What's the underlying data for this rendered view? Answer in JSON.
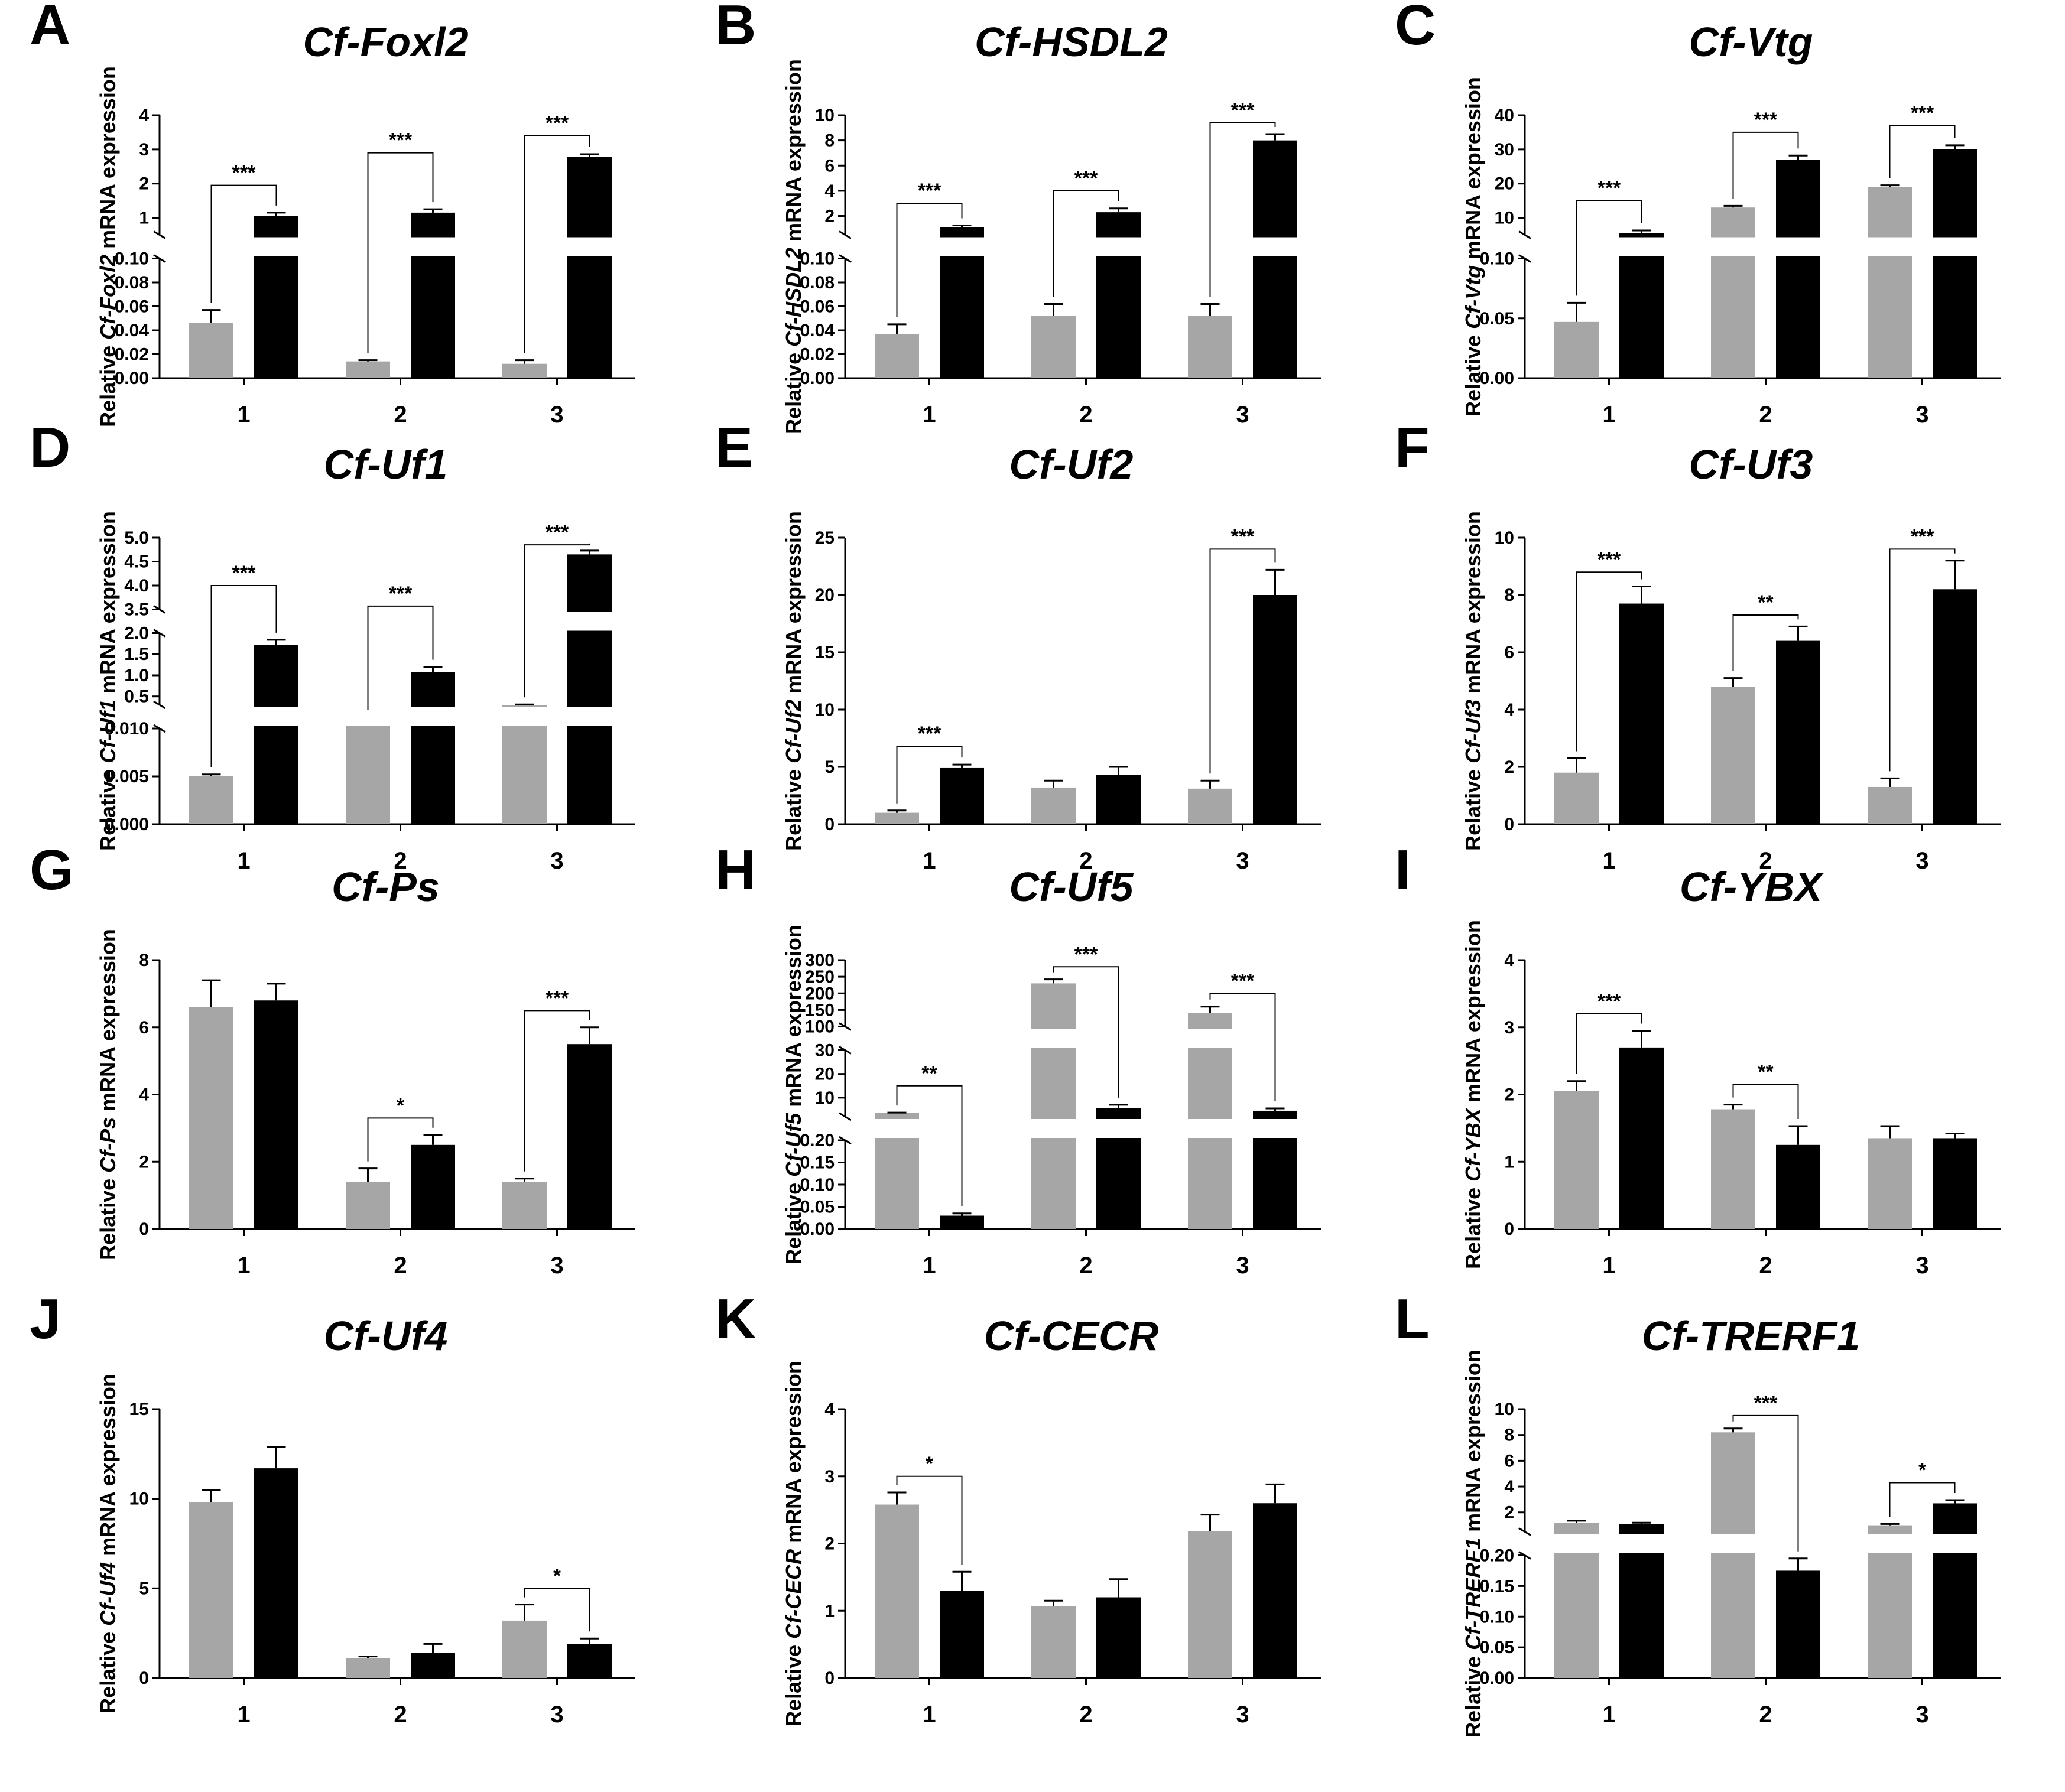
{
  "figure": {
    "ylabel_prefix": "Relative ",
    "ylabel_suffix": " mRNA expression",
    "series_colors": {
      "grey": "#a6a6a6",
      "black": "#000000"
    }
  },
  "chart_data": [
    {
      "type": "bar",
      "letter": "A",
      "title": "Cf-Foxl2",
      "gene": "Cf-Foxl2",
      "categories": [
        "1",
        "2",
        "3"
      ],
      "segments": [
        {
          "lo": 0,
          "hi": 0.1,
          "ticks": [
            0.0,
            0.02,
            0.04,
            0.06,
            0.08,
            0.1
          ],
          "labels": [
            "0.00",
            "0.02",
            "0.04",
            "0.06",
            "0.08",
            "0.10"
          ]
        },
        {
          "lo": 0.5,
          "hi": 4,
          "ticks": [
            1,
            2,
            3,
            4
          ],
          "labels": [
            "1",
            "2",
            "3",
            "4"
          ]
        }
      ],
      "series": [
        {
          "name": "grey",
          "values": [
            0.046,
            0.014,
            0.012
          ],
          "errors": [
            0.011,
            0.001,
            0.003
          ]
        },
        {
          "name": "black",
          "values": [
            1.05,
            1.15,
            2.78
          ],
          "errors": [
            0.1,
            0.1,
            0.08
          ]
        }
      ],
      "significance": [
        {
          "category": 0,
          "label": "***",
          "level": 1.95
        },
        {
          "category": 1,
          "label": "***",
          "level": 2.9
        },
        {
          "category": 2,
          "label": "***",
          "level": 3.4
        }
      ]
    },
    {
      "type": "bar",
      "letter": "B",
      "title": "Cf-HSDL2",
      "gene": "Cf-HSDL2",
      "categories": [
        "1",
        "2",
        "3"
      ],
      "segments": [
        {
          "lo": 0,
          "hi": 0.1,
          "ticks": [
            0.0,
            0.02,
            0.04,
            0.06,
            0.08,
            0.1
          ],
          "labels": [
            "0.00",
            "0.02",
            "0.04",
            "0.06",
            "0.08",
            "0.10"
          ]
        },
        {
          "lo": 0.5,
          "hi": 10,
          "ticks": [
            2,
            4,
            6,
            8,
            10
          ],
          "labels": [
            "2",
            "4",
            "6",
            "8",
            "10"
          ]
        }
      ],
      "series": [
        {
          "name": "grey",
          "values": [
            0.037,
            0.052,
            0.052
          ],
          "errors": [
            0.008,
            0.01,
            0.01
          ]
        },
        {
          "name": "black",
          "values": [
            1.1,
            2.3,
            8.0
          ],
          "errors": [
            0.15,
            0.3,
            0.5
          ]
        }
      ],
      "significance": [
        {
          "category": 0,
          "label": "***",
          "level": 3.0
        },
        {
          "category": 1,
          "label": "***",
          "level": 4.0
        },
        {
          "category": 2,
          "label": "***",
          "level": 9.4
        }
      ]
    },
    {
      "type": "bar",
      "letter": "C",
      "title": "Cf-Vtg",
      "gene": "Cf-Vtg",
      "categories": [
        "1",
        "2",
        "3"
      ],
      "segments": [
        {
          "lo": 0,
          "hi": 0.1,
          "ticks": [
            0.0,
            0.05,
            0.1
          ],
          "labels": [
            "0.00",
            "0.05",
            "0.10"
          ]
        },
        {
          "lo": 5,
          "hi": 40,
          "ticks": [
            10,
            20,
            30,
            40
          ],
          "labels": [
            "10",
            "20",
            "30",
            "40"
          ]
        }
      ],
      "series": [
        {
          "name": "grey",
          "values": [
            0.047,
            13,
            19
          ],
          "errors": [
            0.016,
            0.5,
            0.5
          ]
        },
        {
          "name": "black",
          "values": [
            5.5,
            27,
            30
          ],
          "errors": [
            0.8,
            1.2,
            1.2
          ]
        }
      ],
      "significance": [
        {
          "category": 0,
          "label": "***",
          "level": 15
        },
        {
          "category": 1,
          "label": "***",
          "level": 35
        },
        {
          "category": 2,
          "label": "***",
          "level": 37
        }
      ]
    },
    {
      "type": "bar",
      "letter": "D",
      "title": "Cf-Uf1",
      "gene": "Cf-Uf1",
      "categories": [
        "1",
        "2",
        "3"
      ],
      "segments": [
        {
          "lo": 0,
          "hi": 0.01,
          "ticks": [
            0.0,
            0.005,
            0.01
          ],
          "labels": [
            "0.000",
            "0.005",
            "0.010"
          ]
        },
        {
          "lo": 0.3,
          "hi": 2.0,
          "ticks": [
            0.5,
            1.0,
            1.5,
            2.0
          ],
          "labels": [
            "0.5",
            "1.0",
            "1.5",
            "2.0"
          ]
        },
        {
          "lo": 3.5,
          "hi": 5.0,
          "ticks": [
            3.5,
            4.0,
            4.5,
            5.0
          ],
          "labels": [
            "3.5",
            "4.0",
            "4.5",
            "5.0"
          ]
        }
      ],
      "series": [
        {
          "name": "grey",
          "values": [
            0.005,
            0.2,
            0.3
          ],
          "errors": [
            0.0002,
            0.01,
            0.01
          ]
        },
        {
          "name": "black",
          "values": [
            1.72,
            1.08,
            4.65
          ],
          "errors": [
            0.12,
            0.12,
            0.08
          ]
        }
      ],
      "significance": [
        {
          "category": 0,
          "label": "***",
          "level": 4.0
        },
        {
          "category": 1,
          "label": "***",
          "level": 3.57
        },
        {
          "category": 2,
          "label": "***",
          "level": 4.85
        }
      ]
    },
    {
      "type": "bar",
      "letter": "E",
      "title": "Cf-Uf2",
      "gene": "Cf-Uf2",
      "categories": [
        "1",
        "2",
        "3"
      ],
      "segments": [
        {
          "lo": 0,
          "hi": 25,
          "ticks": [
            0,
            5,
            10,
            15,
            20,
            25
          ],
          "labels": [
            "0",
            "5",
            "10",
            "15",
            "20",
            "25"
          ]
        }
      ],
      "series": [
        {
          "name": "grey",
          "values": [
            1.0,
            3.2,
            3.1
          ],
          "errors": [
            0.2,
            0.6,
            0.7
          ]
        },
        {
          "name": "black",
          "values": [
            4.9,
            4.3,
            20.0
          ],
          "errors": [
            0.3,
            0.7,
            2.2
          ]
        }
      ],
      "significance": [
        {
          "category": 0,
          "label": "***",
          "level": 6.8
        },
        {
          "category": 2,
          "label": "***",
          "level": 24.0
        }
      ]
    },
    {
      "type": "bar",
      "letter": "F",
      "title": "Cf-Uf3",
      "gene": "Cf-Uf3",
      "categories": [
        "1",
        "2",
        "3"
      ],
      "segments": [
        {
          "lo": 0,
          "hi": 10,
          "ticks": [
            0,
            2,
            4,
            6,
            8,
            10
          ],
          "labels": [
            "0",
            "2",
            "4",
            "6",
            "8",
            "10"
          ]
        }
      ],
      "series": [
        {
          "name": "grey",
          "values": [
            1.8,
            4.8,
            1.3
          ],
          "errors": [
            0.5,
            0.3,
            0.3
          ]
        },
        {
          "name": "black",
          "values": [
            7.7,
            6.4,
            8.2
          ],
          "errors": [
            0.6,
            0.5,
            1.0
          ]
        }
      ],
      "significance": [
        {
          "category": 0,
          "label": "***",
          "level": 8.8
        },
        {
          "category": 1,
          "label": "**",
          "level": 7.3
        },
        {
          "category": 2,
          "label": "***",
          "level": 9.6
        }
      ]
    },
    {
      "type": "bar",
      "letter": "G",
      "title": "Cf-Ps",
      "gene": "Cf-Ps",
      "categories": [
        "1",
        "2",
        "3"
      ],
      "segments": [
        {
          "lo": 0,
          "hi": 8,
          "ticks": [
            0,
            2,
            4,
            6,
            8
          ],
          "labels": [
            "0",
            "2",
            "4",
            "6",
            "8"
          ]
        }
      ],
      "series": [
        {
          "name": "grey",
          "values": [
            6.6,
            1.4,
            1.4
          ],
          "errors": [
            0.8,
            0.4,
            0.1
          ]
        },
        {
          "name": "black",
          "values": [
            6.8,
            2.5,
            5.5
          ],
          "errors": [
            0.5,
            0.3,
            0.5
          ]
        }
      ],
      "significance": [
        {
          "category": 1,
          "label": "*",
          "level": 3.3
        },
        {
          "category": 2,
          "label": "***",
          "level": 6.5
        }
      ]
    },
    {
      "type": "bar",
      "letter": "H",
      "title": "Cf-Uf5",
      "gene": "Cf-Uf5",
      "categories": [
        "1",
        "2",
        "3"
      ],
      "segments": [
        {
          "lo": 0,
          "hi": 0.2,
          "ticks": [
            0.0,
            0.05,
            0.1,
            0.15,
            0.2
          ],
          "labels": [
            "0.00",
            "0.05",
            "0.10",
            "0.15",
            "0.20"
          ]
        },
        {
          "lo": 2,
          "hi": 30,
          "ticks": [
            10,
            20,
            30
          ],
          "labels": [
            "10",
            "20",
            "30"
          ]
        },
        {
          "lo": 100,
          "hi": 300,
          "ticks": [
            100,
            150,
            200,
            250,
            300
          ],
          "labels": [
            "100",
            "150",
            "200",
            "250",
            "300"
          ]
        }
      ],
      "series": [
        {
          "name": "grey",
          "values": [
            3.5,
            230,
            140
          ],
          "errors": [
            0.2,
            12,
            20
          ]
        },
        {
          "name": "black",
          "values": [
            0.03,
            5.5,
            4.5
          ],
          "errors": [
            0.005,
            1.5,
            1.0
          ]
        }
      ],
      "significance": [
        {
          "category": 0,
          "label": "**",
          "level": 15
        },
        {
          "category": 1,
          "label": "***",
          "level": 280
        },
        {
          "category": 2,
          "label": "***",
          "level": 200
        }
      ]
    },
    {
      "type": "bar",
      "letter": "I",
      "title": "Cf-YBX",
      "gene": "Cf-YBX",
      "categories": [
        "1",
        "2",
        "3"
      ],
      "segments": [
        {
          "lo": 0,
          "hi": 4,
          "ticks": [
            0,
            1,
            2,
            3,
            4
          ],
          "labels": [
            "0",
            "1",
            "2",
            "3",
            "4"
          ]
        }
      ],
      "series": [
        {
          "name": "grey",
          "values": [
            2.05,
            1.78,
            1.35
          ],
          "errors": [
            0.15,
            0.07,
            0.18
          ]
        },
        {
          "name": "black",
          "values": [
            2.7,
            1.25,
            1.35
          ],
          "errors": [
            0.25,
            0.28,
            0.07
          ]
        }
      ],
      "significance": [
        {
          "category": 0,
          "label": "***",
          "level": 3.2
        },
        {
          "category": 1,
          "label": "**",
          "level": 2.15
        }
      ]
    },
    {
      "type": "bar",
      "letter": "J",
      "title": "Cf-Uf4",
      "gene": "Cf-Uf4",
      "categories": [
        "1",
        "2",
        "3"
      ],
      "segments": [
        {
          "lo": 0,
          "hi": 15,
          "ticks": [
            0,
            5,
            10,
            15
          ],
          "labels": [
            "0",
            "5",
            "10",
            "15"
          ]
        }
      ],
      "series": [
        {
          "name": "grey",
          "values": [
            9.8,
            1.1,
            3.2
          ],
          "errors": [
            0.7,
            0.1,
            0.9
          ]
        },
        {
          "name": "black",
          "values": [
            11.7,
            1.4,
            1.9
          ],
          "errors": [
            1.2,
            0.5,
            0.3
          ]
        }
      ],
      "significance": [
        {
          "category": 2,
          "label": "*",
          "level": 5.0
        }
      ]
    },
    {
      "type": "bar",
      "letter": "K",
      "title": "Cf-CECR",
      "gene": "Cf-CECR",
      "categories": [
        "1",
        "2",
        "3"
      ],
      "segments": [
        {
          "lo": 0,
          "hi": 4,
          "ticks": [
            0,
            1,
            2,
            3,
            4
          ],
          "labels": [
            "0",
            "1",
            "2",
            "3",
            "4"
          ]
        }
      ],
      "series": [
        {
          "name": "grey",
          "values": [
            2.58,
            1.07,
            2.18
          ],
          "errors": [
            0.18,
            0.08,
            0.25
          ]
        },
        {
          "name": "black",
          "values": [
            1.3,
            1.2,
            2.6
          ],
          "errors": [
            0.28,
            0.27,
            0.28
          ]
        }
      ],
      "significance": [
        {
          "category": 0,
          "label": "*",
          "level": 3.0
        }
      ]
    },
    {
      "type": "bar",
      "letter": "L",
      "title": "Cf-TRERF1",
      "gene": "Cf-TRERF1",
      "categories": [
        "1",
        "2",
        "3"
      ],
      "segments": [
        {
          "lo": 0,
          "hi": 0.2,
          "ticks": [
            0.0,
            0.05,
            0.1,
            0.15,
            0.2
          ],
          "labels": [
            "0.00",
            "0.05",
            "0.10",
            "0.15",
            "0.20"
          ]
        },
        {
          "lo": 0.5,
          "hi": 10,
          "ticks": [
            2,
            4,
            6,
            8,
            10
          ],
          "labels": [
            "2",
            "4",
            "6",
            "8",
            "10"
          ]
        }
      ],
      "series": [
        {
          "name": "grey",
          "values": [
            1.2,
            8.2,
            1.0
          ],
          "errors": [
            0.15,
            0.3,
            0.1
          ]
        },
        {
          "name": "black",
          "values": [
            1.1,
            0.175,
            2.7
          ],
          "errors": [
            0.1,
            0.02,
            0.25
          ]
        }
      ],
      "significance": [
        {
          "category": 1,
          "label": "***",
          "level": 9.5
        },
        {
          "category": 2,
          "label": "*",
          "level": 4.3
        }
      ]
    }
  ]
}
